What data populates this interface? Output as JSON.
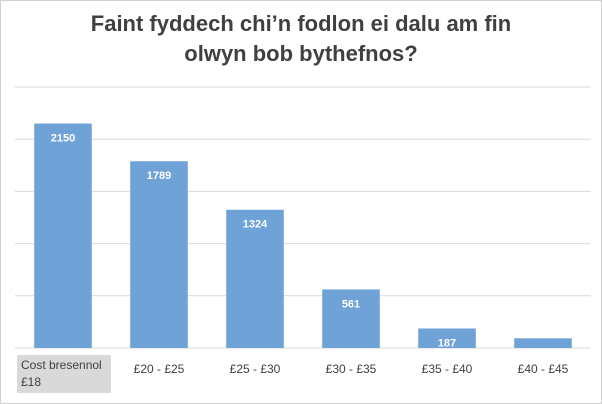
{
  "chart_data": {
    "type": "bar",
    "title": "Faint fyddech chi’n fodlon ei dalu am fin olwyn bob bythefnos?",
    "categories": [
      "Cost bresennol £18",
      "£20 - £25",
      "£25 - £30",
      "£30 - £35",
      "£35 - £40",
      "£40 - £45"
    ],
    "values": [
      2150,
      1789,
      1324,
      561,
      187,
      93
    ],
    "color": "#6fa3d8",
    "ylim": [
      0,
      2500
    ],
    "yticks": [
      0,
      500,
      1000,
      1500,
      2000,
      2500
    ],
    "grid": true
  }
}
